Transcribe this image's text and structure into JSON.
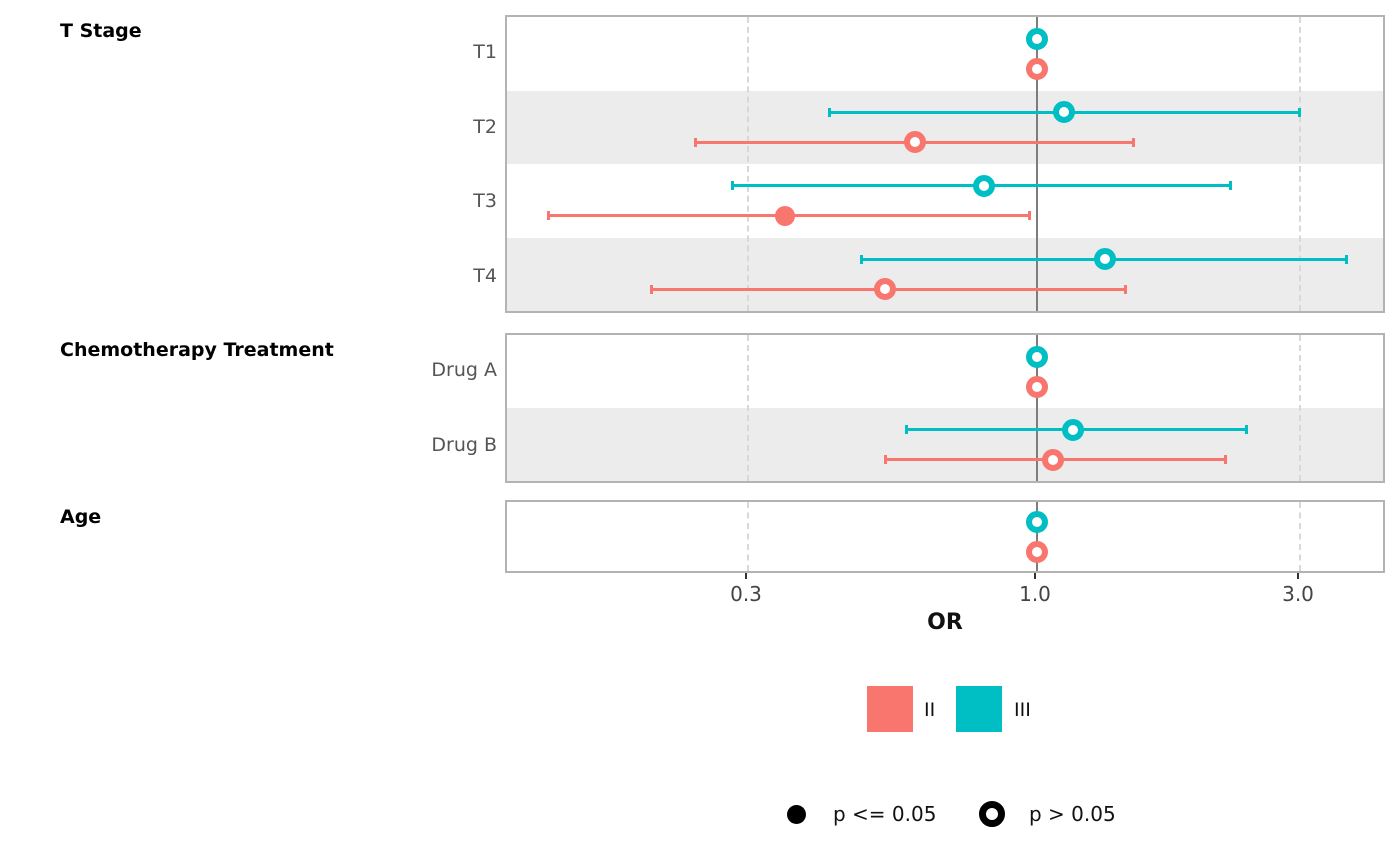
{
  "axis": {
    "title": "OR",
    "tick_labels": [
      "0.3",
      "1.0",
      "3.0"
    ]
  },
  "colors": {
    "II": "#F8766D",
    "III": "#00BFC4",
    "stripe": "#ececec",
    "reference_line": "#7d7d7d",
    "dashed_grid": "#d8d8d8",
    "panel_border": "#b3b3b3"
  },
  "legend": {
    "stages": [
      {
        "label": "II",
        "color": "#F8766D"
      },
      {
        "label": "III",
        "color": "#00BFC4"
      }
    ],
    "pvalue": [
      {
        "label": "p <= 0.05",
        "style": "filled"
      },
      {
        "label": "p > 0.05",
        "style": "open"
      }
    ]
  },
  "chart_data": {
    "type": "forest",
    "xlabel": "OR",
    "x_scale": "log10",
    "x_ticks": [
      0.3,
      1.0,
      3.0
    ],
    "x_tick_labels": [
      "0.3",
      "1.0",
      "3.0"
    ],
    "reference_or": 1.0,
    "series": [
      "II",
      "III"
    ],
    "significance_legend": {
      "filled": "p <= 0.05",
      "open": "p > 0.05"
    },
    "groups": [
      {
        "label": "T Stage",
        "rows": [
          {
            "label": "T1",
            "estimates": [
              {
                "series": "III",
                "or": 1.0,
                "ci_low": null,
                "ci_high": null,
                "significant": false
              },
              {
                "series": "II",
                "or": 1.0,
                "ci_low": null,
                "ci_high": null,
                "significant": false
              }
            ]
          },
          {
            "label": "T2",
            "estimates": [
              {
                "series": "III",
                "or": 1.12,
                "ci_low": 0.42,
                "ci_high": 3.0,
                "significant": false
              },
              {
                "series": "II",
                "or": 0.6,
                "ci_low": 0.24,
                "ci_high": 1.5,
                "significant": false
              }
            ]
          },
          {
            "label": "T3",
            "estimates": [
              {
                "series": "III",
                "or": 0.8,
                "ci_low": 0.28,
                "ci_high": 2.25,
                "significant": false
              },
              {
                "series": "II",
                "or": 0.35,
                "ci_low": 0.13,
                "ci_high": 0.97,
                "significant": true
              }
            ]
          },
          {
            "label": "T4",
            "estimates": [
              {
                "series": "III",
                "or": 1.33,
                "ci_low": 0.48,
                "ci_high": 3.65,
                "significant": false
              },
              {
                "series": "II",
                "or": 0.53,
                "ci_low": 0.2,
                "ci_high": 1.45,
                "significant": false
              }
            ]
          }
        ]
      },
      {
        "label": "Chemotherapy Treatment",
        "rows": [
          {
            "label": "Drug A",
            "estimates": [
              {
                "series": "III",
                "or": 1.0,
                "ci_low": null,
                "ci_high": null,
                "significant": false
              },
              {
                "series": "II",
                "or": 1.0,
                "ci_low": null,
                "ci_high": null,
                "significant": false
              }
            ]
          },
          {
            "label": "Drug B",
            "estimates": [
              {
                "series": "III",
                "or": 1.16,
                "ci_low": 0.58,
                "ci_high": 2.4,
                "significant": false
              },
              {
                "series": "II",
                "or": 1.07,
                "ci_low": 0.53,
                "ci_high": 2.2,
                "significant": false
              }
            ]
          }
        ]
      },
      {
        "label": "Age",
        "rows": [
          {
            "label": "",
            "estimates": [
              {
                "series": "III",
                "or": 1.0,
                "ci_low": null,
                "ci_high": null,
                "significant": false
              },
              {
                "series": "II",
                "or": 1.0,
                "ci_low": null,
                "ci_high": null,
                "significant": false
              }
            ]
          }
        ]
      }
    ]
  }
}
